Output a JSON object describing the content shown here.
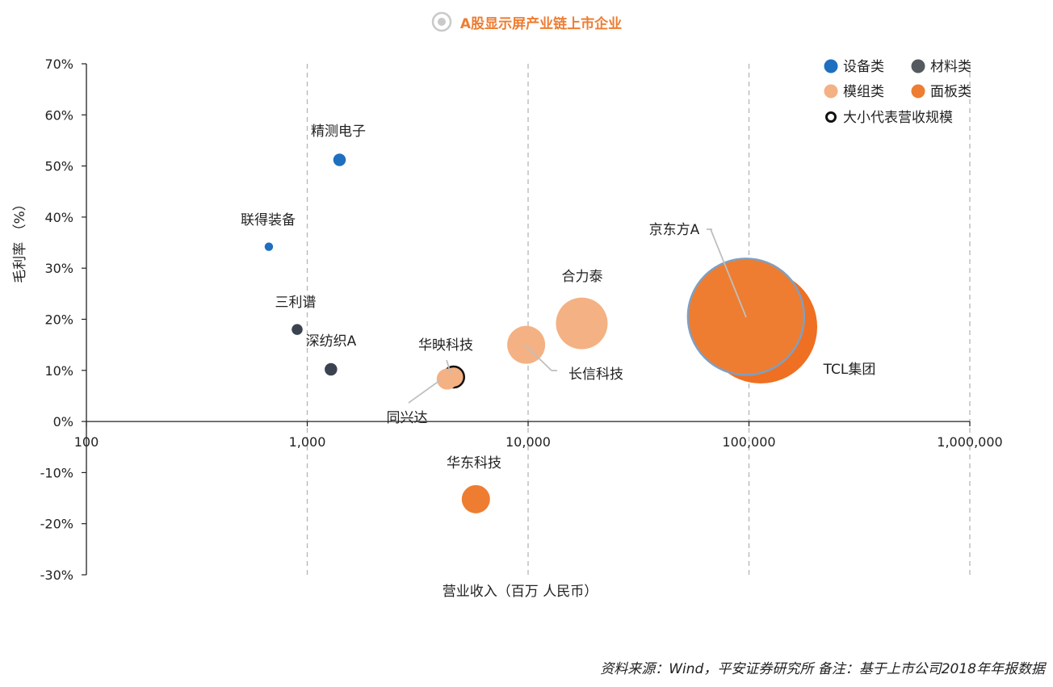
{
  "title": "A股显示屏产业链上市企业",
  "source_note": "资料来源：Wind，平安证券研究所 备注：基于上市公司2018年年报数据",
  "chart_data": {
    "type": "scatter",
    "subtype": "bubble",
    "title": "A股显示屏产业链上市企业",
    "xlabel": "营业收入（百万 人民币）",
    "ylabel": "毛利率 （%）",
    "x_scale": "log",
    "xlim": [
      100,
      1000000
    ],
    "ylim": [
      -30,
      70
    ],
    "x_ticks": [
      100,
      1000,
      10000,
      100000,
      1000000
    ],
    "x_tick_labels": [
      "100",
      "1,000",
      "10,000",
      "100,000",
      "1,000,000"
    ],
    "y_ticks": [
      -30,
      -20,
      -10,
      0,
      10,
      20,
      30,
      40,
      50,
      60,
      70
    ],
    "y_tick_labels": [
      "-30%",
      "-20%",
      "-10%",
      "0%",
      "10%",
      "20%",
      "30%",
      "40%",
      "50%",
      "60%",
      "70%"
    ],
    "grid": "vertical dashed",
    "legend_position": "top-right",
    "legend": [
      {
        "name": "设备类",
        "color": "#1f6fbf"
      },
      {
        "name": "材料类",
        "color": "#555a60"
      },
      {
        "name": "模组类",
        "color": "#f4b183"
      },
      {
        "name": "面板类",
        "color": "#ee7d31"
      },
      {
        "name": "大小代表营收规模",
        "color": "#ffffff"
      }
    ],
    "categories_colors": {
      "设备类": "#1f6fbf",
      "材料类": "#3c4350",
      "模组类": "#f4b183",
      "面板类": "#ee7d31"
    },
    "points": [
      {
        "name": "精测电子",
        "category": "设备类",
        "x": 1400,
        "y": 51.2
      },
      {
        "name": "联得装备",
        "category": "设备类",
        "x": 670,
        "y": 34.2
      },
      {
        "name": "三利谱",
        "category": "材料类",
        "x": 900,
        "y": 18
      },
      {
        "name": "深纺织A",
        "category": "材料类",
        "x": 1280,
        "y": 10.2
      },
      {
        "name": "华映科技",
        "category": "模组类",
        "x": 4600,
        "y": 8.7
      },
      {
        "name": "同兴达",
        "category": "模组类",
        "x": 4300,
        "y": 8.3
      },
      {
        "name": "长信科技",
        "category": "模组类",
        "x": 9800,
        "y": 15
      },
      {
        "name": "合力泰",
        "category": "模组类",
        "x": 17500,
        "y": 19.2
      },
      {
        "name": "华东科技",
        "category": "面板类",
        "x": 5800,
        "y": -15.2
      },
      {
        "name": "TCL集团",
        "category": "面板类",
        "x": 113000,
        "y": 18.5
      },
      {
        "name": "京东方A",
        "category": "面板类",
        "x": 97000,
        "y": 20.5
      }
    ]
  }
}
